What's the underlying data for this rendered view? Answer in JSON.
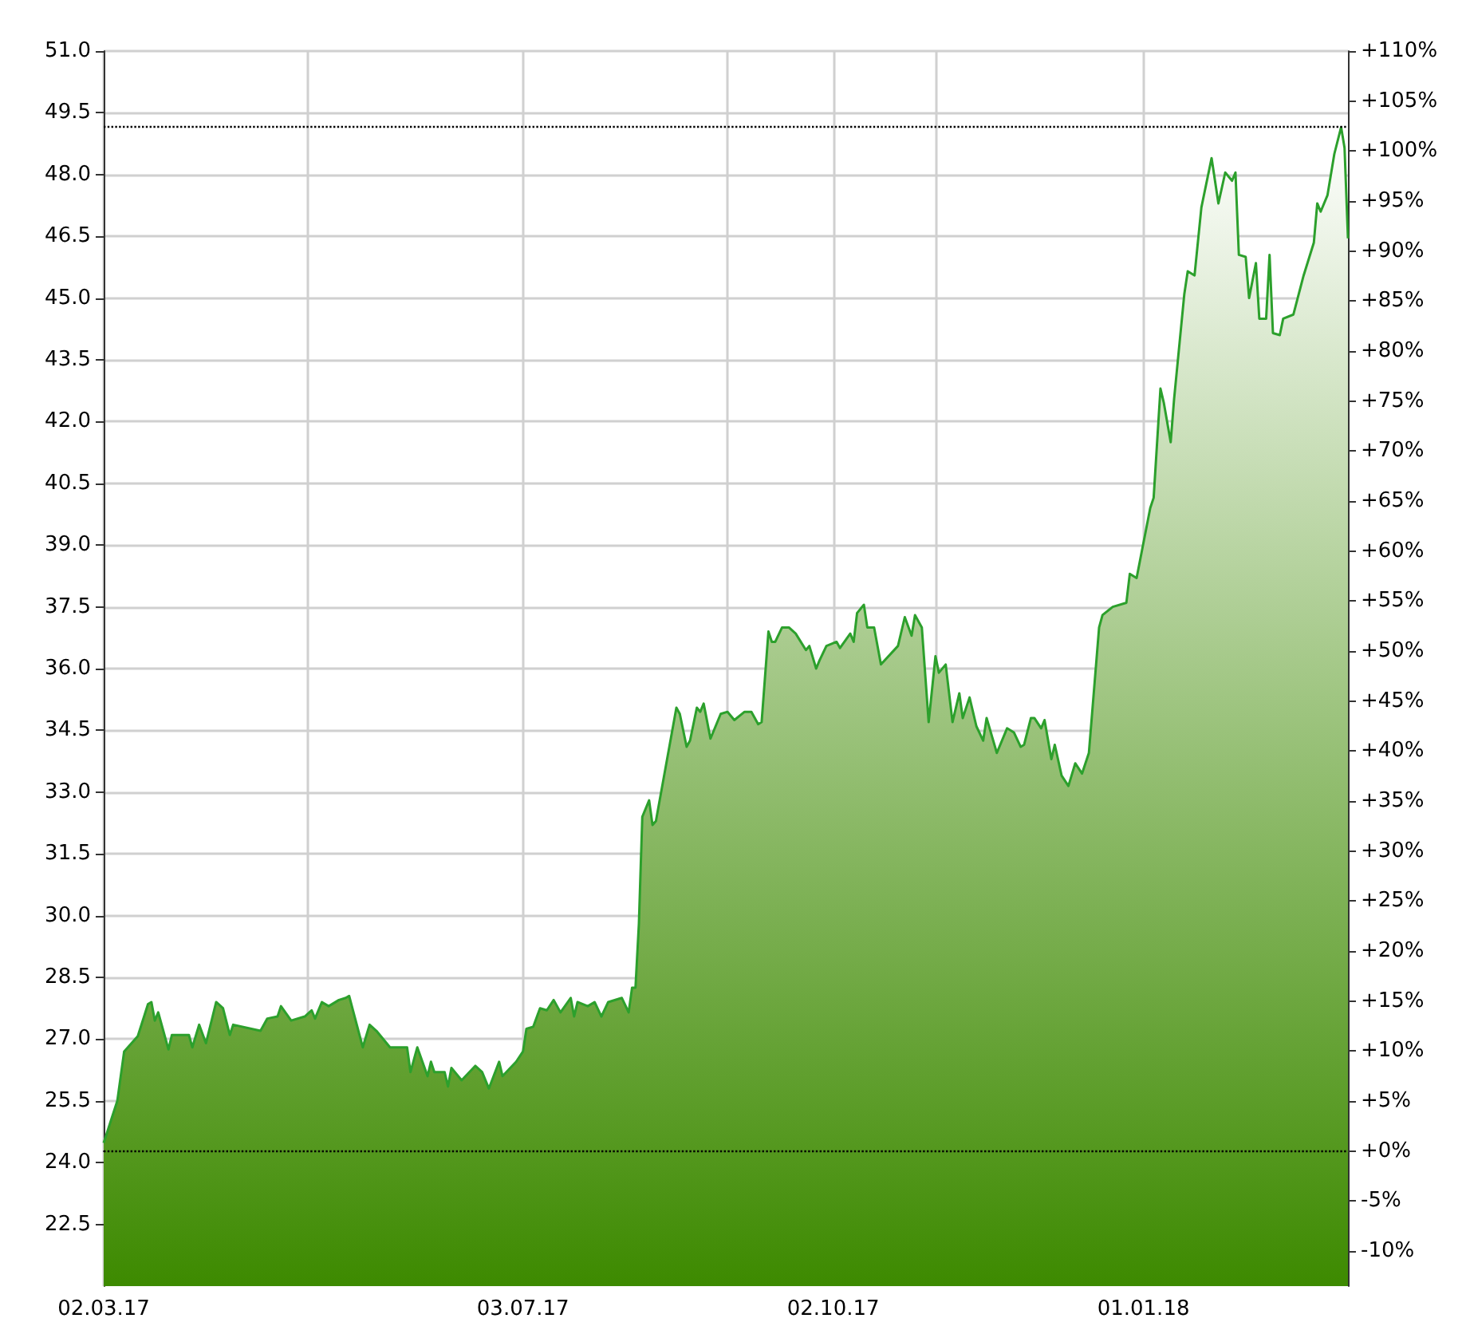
{
  "chart_data": {
    "type": "area",
    "x": [
      "2017-03-02",
      "2017-03-06",
      "2017-03-08",
      "2017-03-12",
      "2017-03-15",
      "2017-03-16",
      "2017-03-17",
      "2017-03-18",
      "2017-03-21",
      "2017-03-22",
      "2017-03-27",
      "2017-03-28",
      "2017-03-30",
      "2017-04-01",
      "2017-04-04",
      "2017-04-06",
      "2017-04-08",
      "2017-04-09",
      "2017-04-17",
      "2017-04-19",
      "2017-04-22",
      "2017-04-23",
      "2017-04-26",
      "2017-04-30",
      "2017-05-02",
      "2017-05-03",
      "2017-05-05",
      "2017-05-07",
      "2017-05-10",
      "2017-05-12",
      "2017-05-13",
      "2017-05-17",
      "2017-05-19",
      "2017-05-21",
      "2017-05-25",
      "2017-05-30",
      "2017-05-31",
      "2017-06-02",
      "2017-06-05",
      "2017-06-06",
      "2017-06-07",
      "2017-06-10",
      "2017-06-11",
      "2017-06-12",
      "2017-06-15",
      "2017-06-19",
      "2017-06-21",
      "2017-06-23",
      "2017-06-26",
      "2017-06-27",
      "2017-07-01",
      "2017-07-03",
      "2017-07-04",
      "2017-07-06",
      "2017-07-08",
      "2017-07-10",
      "2017-07-12",
      "2017-07-14",
      "2017-07-17",
      "2017-07-18",
      "2017-07-19",
      "2017-07-22",
      "2017-07-24",
      "2017-07-26",
      "2017-07-28",
      "2017-08-01",
      "2017-08-03",
      "2017-08-04",
      "2017-08-05",
      "2017-08-06",
      "2017-08-07",
      "2017-08-09",
      "2017-08-10",
      "2017-08-11",
      "2017-08-17",
      "2017-08-18",
      "2017-08-20",
      "2017-08-21",
      "2017-08-23",
      "2017-08-24",
      "2017-08-25",
      "2017-08-27",
      "2017-08-30",
      "2017-09-01",
      "2017-09-03",
      "2017-09-06",
      "2017-09-08",
      "2017-09-10",
      "2017-09-11",
      "2017-09-13",
      "2017-09-14",
      "2017-09-15",
      "2017-09-17",
      "2017-09-19",
      "2017-09-21",
      "2017-09-24",
      "2017-09-25",
      "2017-09-27",
      "2017-09-28",
      "2017-09-30",
      "2017-10-03",
      "2017-10-04",
      "2017-10-07",
      "2017-10-08",
      "2017-10-09",
      "2017-10-11",
      "2017-10-12",
      "2017-10-14",
      "2017-10-16",
      "2017-10-21",
      "2017-10-23",
      "2017-10-25",
      "2017-10-26",
      "2017-10-28",
      "2017-10-30",
      "2017-11-01",
      "2017-11-02",
      "2017-11-04",
      "2017-11-06",
      "2017-11-08",
      "2017-11-09",
      "2017-11-11",
      "2017-11-13",
      "2017-11-15",
      "2017-11-16",
      "2017-11-19",
      "2017-11-22",
      "2017-11-24",
      "2017-11-26",
      "2017-11-27",
      "2017-11-29",
      "2017-11-30",
      "2017-12-02",
      "2017-12-03",
      "2017-12-05",
      "2017-12-06",
      "2017-12-08",
      "2017-12-10",
      "2017-12-12",
      "2017-12-14",
      "2017-12-16",
      "2017-12-19",
      "2017-12-20",
      "2017-12-23",
      "2017-12-27",
      "2017-12-28",
      "2017-12-30",
      "2018-01-03",
      "2018-01-04",
      "2018-01-06",
      "2018-01-07",
      "2018-01-09",
      "2018-01-10",
      "2018-01-13",
      "2018-01-14",
      "2018-01-16",
      "2018-01-18",
      "2018-01-21",
      "2018-01-23",
      "2018-01-25",
      "2018-01-27",
      "2018-01-28",
      "2018-01-29",
      "2018-01-31",
      "2018-02-01",
      "2018-02-03",
      "2018-02-04",
      "2018-02-06",
      "2018-02-07",
      "2018-02-08",
      "2018-02-10",
      "2018-02-11",
      "2018-02-14",
      "2018-02-17",
      "2018-02-20",
      "2018-02-21",
      "2018-02-22",
      "2018-02-24",
      "2018-02-26",
      "2018-02-28",
      "2018-03-01",
      "2018-03-02"
    ],
    "series": [
      {
        "color": "#2ca02c",
        "values": [
          24.48,
          25.5,
          26.7,
          27.07,
          27.85,
          27.9,
          27.45,
          27.65,
          26.75,
          27.1,
          27.1,
          26.8,
          27.35,
          26.9,
          27.9,
          27.75,
          27.1,
          27.35,
          27.2,
          27.5,
          27.55,
          27.8,
          27.45,
          27.55,
          27.7,
          27.5,
          27.9,
          27.8,
          27.95,
          28.0,
          28.05,
          26.8,
          27.35,
          27.2,
          26.8,
          26.8,
          26.2,
          26.8,
          26.1,
          26.45,
          26.2,
          26.2,
          25.85,
          26.3,
          26.0,
          26.35,
          26.2,
          25.8,
          26.45,
          26.1,
          26.45,
          26.7,
          27.25,
          27.3,
          27.75,
          27.7,
          27.95,
          27.65,
          28.0,
          27.55,
          27.9,
          27.8,
          27.9,
          27.55,
          27.9,
          28.0,
          27.65,
          28.25,
          28.25,
          29.8,
          32.4,
          32.8,
          32.2,
          32.3,
          35.05,
          34.9,
          34.1,
          34.25,
          35.05,
          34.95,
          35.15,
          34.3,
          34.9,
          34.95,
          34.75,
          34.95,
          34.95,
          34.65,
          34.7,
          36.9,
          36.65,
          36.65,
          37.0,
          37.0,
          36.85,
          36.45,
          36.55,
          36.0,
          36.2,
          36.55,
          36.65,
          36.5,
          36.85,
          36.65,
          37.35,
          37.55,
          37.0,
          37.0,
          36.1,
          36.55,
          37.25,
          36.8,
          37.3,
          37.0,
          34.7,
          36.3,
          35.9,
          36.1,
          34.7,
          35.4,
          34.8,
          35.3,
          34.6,
          34.25,
          34.8,
          33.95,
          34.55,
          34.45,
          34.1,
          34.15,
          34.8,
          34.8,
          34.55,
          34.75,
          33.8,
          34.15,
          33.4,
          33.15,
          33.7,
          33.45,
          33.95,
          37.0,
          37.3,
          37.5,
          37.6,
          38.3,
          38.2,
          39.9,
          40.15,
          42.8,
          42.45,
          41.5,
          42.55,
          45.1,
          45.65,
          45.55,
          47.2,
          48.4,
          47.3,
          48.05,
          47.85,
          48.05,
          46.05,
          46.0,
          45.0,
          45.85,
          44.5,
          44.5,
          46.05,
          44.15,
          44.1,
          44.5,
          44.6,
          45.55,
          46.35,
          47.3,
          47.1,
          47.5,
          48.5,
          49.15,
          48.65,
          46.45
        ]
      }
    ],
    "xlim": [
      "2017-03-02",
      "2018-03-02"
    ],
    "xticks": [
      {
        "value": "2017-03-02",
        "label": "02.03.17"
      },
      {
        "value": "2017-05-01",
        "label": null
      },
      {
        "value": "2017-07-03",
        "label": "03.07.17"
      },
      {
        "value": "2017-09-01",
        "label": null
      },
      {
        "value": "2017-10-02",
        "label": "02.10.17"
      },
      {
        "value": "2017-11-01",
        "label": null
      },
      {
        "value": "2018-01-01",
        "label": "01.01.18"
      }
    ],
    "ylim": [
      21,
      51
    ],
    "yticks": [
      {
        "value": 22.5,
        "label": "22.5"
      },
      {
        "value": 24,
        "label": "24.0"
      },
      {
        "value": 25.5,
        "label": "25.5"
      },
      {
        "value": 27,
        "label": "27.0"
      },
      {
        "value": 28.5,
        "label": "28.5"
      },
      {
        "value": 30,
        "label": "30.0"
      },
      {
        "value": 31.5,
        "label": "31.5"
      },
      {
        "value": 33,
        "label": "33.0"
      },
      {
        "value": 34.5,
        "label": "34.5"
      },
      {
        "value": 36,
        "label": "36.0"
      },
      {
        "value": 37.5,
        "label": "37.5"
      },
      {
        "value": 39,
        "label": "39.0"
      },
      {
        "value": 40.5,
        "label": "40.5"
      },
      {
        "value": 42,
        "label": "42.0"
      },
      {
        "value": 43.5,
        "label": "43.5"
      },
      {
        "value": 45,
        "label": "45.0"
      },
      {
        "value": 46.5,
        "label": "46.5"
      },
      {
        "value": 48,
        "label": "48.0"
      },
      {
        "value": 49.5,
        "label": "49.5"
      },
      {
        "value": 51,
        "label": "51.0"
      }
    ],
    "y2lim": [
      -13.5,
      110
    ],
    "y2ticks": [
      {
        "value": -10,
        "label": "-10%"
      },
      {
        "value": -5,
        "label": "-5%"
      },
      {
        "value": 0,
        "label": "+0%"
      },
      {
        "value": 5,
        "label": "+5%"
      },
      {
        "value": 10,
        "label": "+10%"
      },
      {
        "value": 15,
        "label": "+15%"
      },
      {
        "value": 20,
        "label": "+20%"
      },
      {
        "value": 25,
        "label": "+25%"
      },
      {
        "value": 30,
        "label": "+30%"
      },
      {
        "value": 35,
        "label": "+35%"
      },
      {
        "value": 40,
        "label": "+40%"
      },
      {
        "value": 45,
        "label": "+45%"
      },
      {
        "value": 50,
        "label": "+50%"
      },
      {
        "value": 55,
        "label": "+55%"
      },
      {
        "value": 60,
        "label": "+60%"
      },
      {
        "value": 65,
        "label": "+65%"
      },
      {
        "value": 70,
        "label": "+70%"
      },
      {
        "value": 75,
        "label": "+75%"
      },
      {
        "value": 80,
        "label": "+80%"
      },
      {
        "value": 85,
        "label": "+85%"
      },
      {
        "value": 90,
        "label": "+90%"
      },
      {
        "value": 95,
        "label": "+95%"
      },
      {
        "value": 100,
        "label": "+100%"
      },
      {
        "value": 105,
        "label": "+105%"
      },
      {
        "value": 110,
        "label": "+110%"
      }
    ],
    "ref_lines": [
      {
        "axis": "y2",
        "value": 0,
        "color": "#000000",
        "line_style": "dotted"
      },
      {
        "axis": "y",
        "value": 49.15,
        "color": "#000000",
        "line_style": "dotted"
      }
    ],
    "grid": true,
    "marker": "none",
    "line_style": "solid"
  }
}
